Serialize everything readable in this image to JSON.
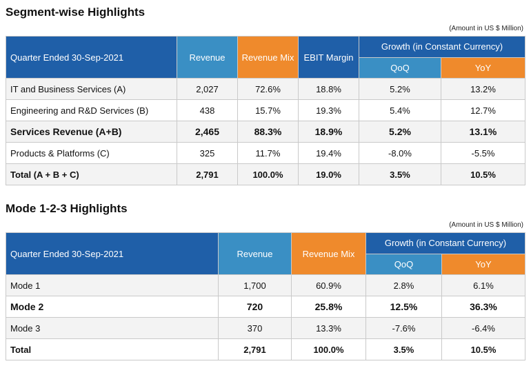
{
  "segment": {
    "title": "Segment-wise Highlights",
    "note": "(Amount in US $ Million)",
    "headers": {
      "quarter": "Quarter Ended 30-Sep-2021",
      "revenue": "Revenue",
      "mix": "Revenue Mix",
      "ebit": "EBIT Margin",
      "growth": "Growth (in Constant Currency)",
      "qoq": "QoQ",
      "yoy": "YoY"
    },
    "rows": [
      {
        "label": "IT and Business Services (A)",
        "revenue": "2,027",
        "mix": "72.6%",
        "ebit": "18.8%",
        "qoq": "5.2%",
        "yoy": "13.2%"
      },
      {
        "label": "Engineering and R&D Services (B)",
        "revenue": "438",
        "mix": "15.7%",
        "ebit": "19.3%",
        "qoq": "5.4%",
        "yoy": "12.7%"
      },
      {
        "label": "Services Revenue (A+B)",
        "revenue": "2,465",
        "mix": "88.3%",
        "ebit": "18.9%",
        "qoq": "5.2%",
        "yoy": "13.1%"
      },
      {
        "label": "Products & Platforms (C)",
        "revenue": "325",
        "mix": "11.7%",
        "ebit": "19.4%",
        "qoq": "-8.0%",
        "yoy": "-5.5%"
      },
      {
        "label": "Total (A + B + C)",
        "revenue": "2,791",
        "mix": "100.0%",
        "ebit": "19.0%",
        "qoq": "3.5%",
        "yoy": "10.5%"
      }
    ]
  },
  "mode": {
    "title": "Mode 1-2-3 Highlights",
    "note": "(Amount in US $ Million)",
    "headers": {
      "quarter": "Quarter Ended 30-Sep-2021",
      "revenue": "Revenue",
      "mix": "Revenue Mix",
      "growth": "Growth (in Constant Currency)",
      "qoq": "QoQ",
      "yoy": "YoY"
    },
    "rows": [
      {
        "label": "Mode 1",
        "revenue": "1,700",
        "mix": "60.9%",
        "qoq": "2.8%",
        "yoy": "6.1%"
      },
      {
        "label": "Mode 2",
        "revenue": "720",
        "mix": "25.8%",
        "qoq": "12.5%",
        "yoy": "36.3%"
      },
      {
        "label": "Mode 3",
        "revenue": "370",
        "mix": "13.3%",
        "qoq": "-7.6%",
        "yoy": "-6.4%"
      },
      {
        "label": "Total",
        "revenue": "2,791",
        "mix": "100.0%",
        "qoq": "3.5%",
        "yoy": "10.5%"
      }
    ]
  }
}
